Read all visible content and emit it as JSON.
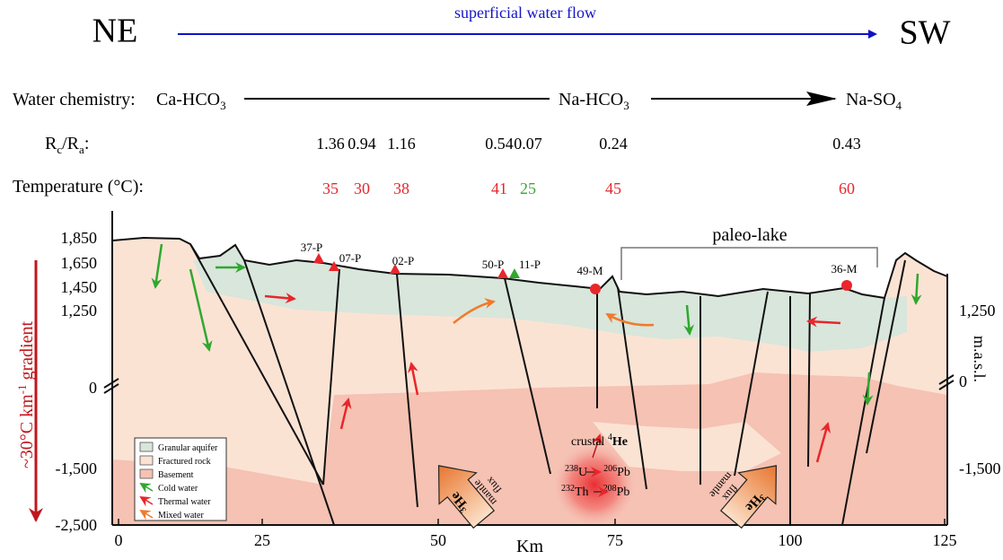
{
  "header": {
    "left": "NE",
    "right": "SW",
    "flow": "superficial water flow"
  },
  "chemistry": {
    "label": "Water chemistry:",
    "stages": [
      {
        "text": "Ca-HCO",
        "sub": "3"
      },
      {
        "text": "Na-HCO",
        "sub": "3"
      },
      {
        "text": "Na-SO",
        "sub": "4"
      }
    ]
  },
  "ratio": {
    "label": {
      "r1": "R",
      "s1": "c",
      "r2": "/R",
      "s2": "a",
      "end": ":"
    },
    "values": [
      "1.36",
      "0.94",
      "1.16",
      "0.54",
      "0.07",
      "0.24",
      "0.43"
    ]
  },
  "temperature": {
    "label": "Temperature (°C):",
    "values": [
      {
        "text": "35",
        "color": "#e8262b"
      },
      {
        "text": "30",
        "color": "#e8262b"
      },
      {
        "text": "38",
        "color": "#e8262b"
      },
      {
        "text": "41",
        "color": "#e8262b"
      },
      {
        "text": "25",
        "color": "#3aa935"
      },
      {
        "text": "45",
        "color": "#e8262b"
      },
      {
        "text": "60",
        "color": "#e8262b"
      }
    ]
  },
  "section": {
    "left_ticks": [
      "1,850",
      "1,650",
      "1,450",
      "1,250",
      "0",
      "-1,500",
      "-2,500"
    ],
    "right_ticks": [
      "1,250",
      "0",
      "-1,500"
    ],
    "right_axis_label": "m.a.s.l.",
    "x_ticks": [
      "0",
      "25",
      "50",
      "75",
      "100",
      "125"
    ],
    "x_label": "Km",
    "gradient": {
      "pre": "~30°C km",
      "sup": "-1",
      "post": " gradient"
    },
    "sites": [
      "37-P",
      "07-P",
      "02-P",
      "50-P",
      "11-P",
      "49-M",
      "36-M"
    ],
    "lake": "paleo-lake",
    "crustal": {
      "pre": "crustal ",
      "sup": "4",
      "he": "He"
    },
    "decay": [
      {
        "sup1": "238",
        "el1": "U",
        "sup2": "206",
        "el2": "Pb"
      },
      {
        "sup1": "232",
        "el1": "Th",
        "sup2": "208",
        "el2": "Pb"
      }
    ],
    "mantle_flux": [
      {
        "sup": "3",
        "he": "He",
        "l1": "mantle",
        "l2": "flux"
      },
      {
        "sup": "3",
        "he": "He",
        "l1": "mantle",
        "l2": "flux"
      }
    ]
  },
  "legend": [
    "Granular aquifer",
    "Fractured rock",
    "Basement",
    "Cold water",
    "Thermal water",
    "Mixed water"
  ]
}
